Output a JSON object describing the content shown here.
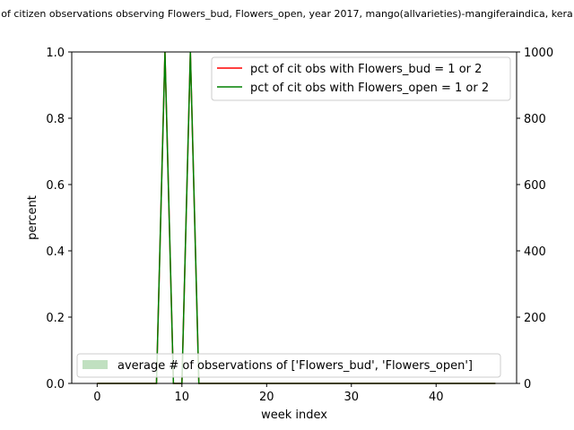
{
  "chart_data": {
    "type": "line",
    "title": "of citizen observations observing Flowers_bud, Flowers_open, year 2017, mango(allvarieties)-mangiferaindica, kera",
    "xlabel": "week index",
    "ylabel": "percent",
    "xlim": [
      -3,
      49.5
    ],
    "ylim": [
      0,
      1
    ],
    "y2lim": [
      0,
      1000
    ],
    "x_ticks": [
      0,
      10,
      20,
      30,
      40
    ],
    "y_ticks": [
      0.0,
      0.2,
      0.4,
      0.6,
      0.8,
      1.0
    ],
    "y2_ticks": [
      0,
      200,
      400,
      600,
      800,
      1000
    ],
    "x_tick_labels": [
      "0",
      "10",
      "20",
      "30",
      "40"
    ],
    "y_tick_labels": [
      "0.0",
      "0.2",
      "0.4",
      "0.6",
      "0.8",
      "1.0"
    ],
    "y2_tick_labels": [
      "0",
      "200",
      "400",
      "600",
      "800",
      "1000"
    ],
    "grid": false,
    "legend_upper": "top-right",
    "legend_lower": "bottom-left",
    "x": [
      0,
      1,
      2,
      3,
      4,
      5,
      6,
      7,
      8,
      9,
      10,
      11,
      12,
      13,
      14,
      15,
      16,
      17,
      18,
      19,
      20,
      21,
      22,
      23,
      24,
      25,
      26,
      27,
      28,
      29,
      30,
      31,
      32,
      33,
      34,
      35,
      36,
      37,
      38,
      39,
      40,
      41,
      42,
      43,
      44,
      45,
      46,
      47
    ],
    "series": [
      {
        "name": "pct of cit obs with Flowers_bud = 1 or 2",
        "color": "#ff0000",
        "axis": "left",
        "values": [
          0,
          0,
          0,
          0,
          0,
          0,
          0,
          0,
          1,
          0,
          0,
          1,
          0,
          0,
          0,
          0,
          0,
          0,
          0,
          0,
          0,
          0,
          0,
          0,
          0,
          0,
          0,
          0,
          0,
          0,
          0,
          0,
          0,
          0,
          0,
          0,
          0,
          0,
          0,
          0,
          0,
          0,
          0,
          0,
          0,
          0,
          0,
          0
        ]
      },
      {
        "name": "pct of cit obs with Flowers_open = 1 or 2",
        "color": "#008000",
        "axis": "left",
        "values": [
          0,
          0,
          0,
          0,
          0,
          0,
          0,
          0,
          1,
          0,
          0,
          1,
          0,
          0,
          0,
          0,
          0,
          0,
          0,
          0,
          0,
          0,
          0,
          0,
          0,
          0,
          0,
          0,
          0,
          0,
          0,
          0,
          0,
          0,
          0,
          0,
          0,
          0,
          0,
          0,
          0,
          0,
          0,
          0,
          0,
          0,
          0,
          0
        ]
      },
      {
        "name": "average # of observations of ['Flowers_bud', 'Flowers_open']",
        "color": "#c0e0c0",
        "axis": "right",
        "type": "area",
        "values": [
          0,
          0,
          0,
          0,
          0,
          0,
          0,
          1,
          1,
          0,
          1,
          1,
          1,
          0,
          0,
          0,
          0,
          0,
          0,
          0,
          0,
          0,
          0,
          0,
          0,
          0,
          0,
          0,
          0,
          0,
          0,
          0,
          0,
          0,
          0,
          0,
          0,
          0,
          0,
          0,
          0,
          0,
          0,
          0,
          0,
          0,
          0,
          0
        ]
      }
    ]
  }
}
